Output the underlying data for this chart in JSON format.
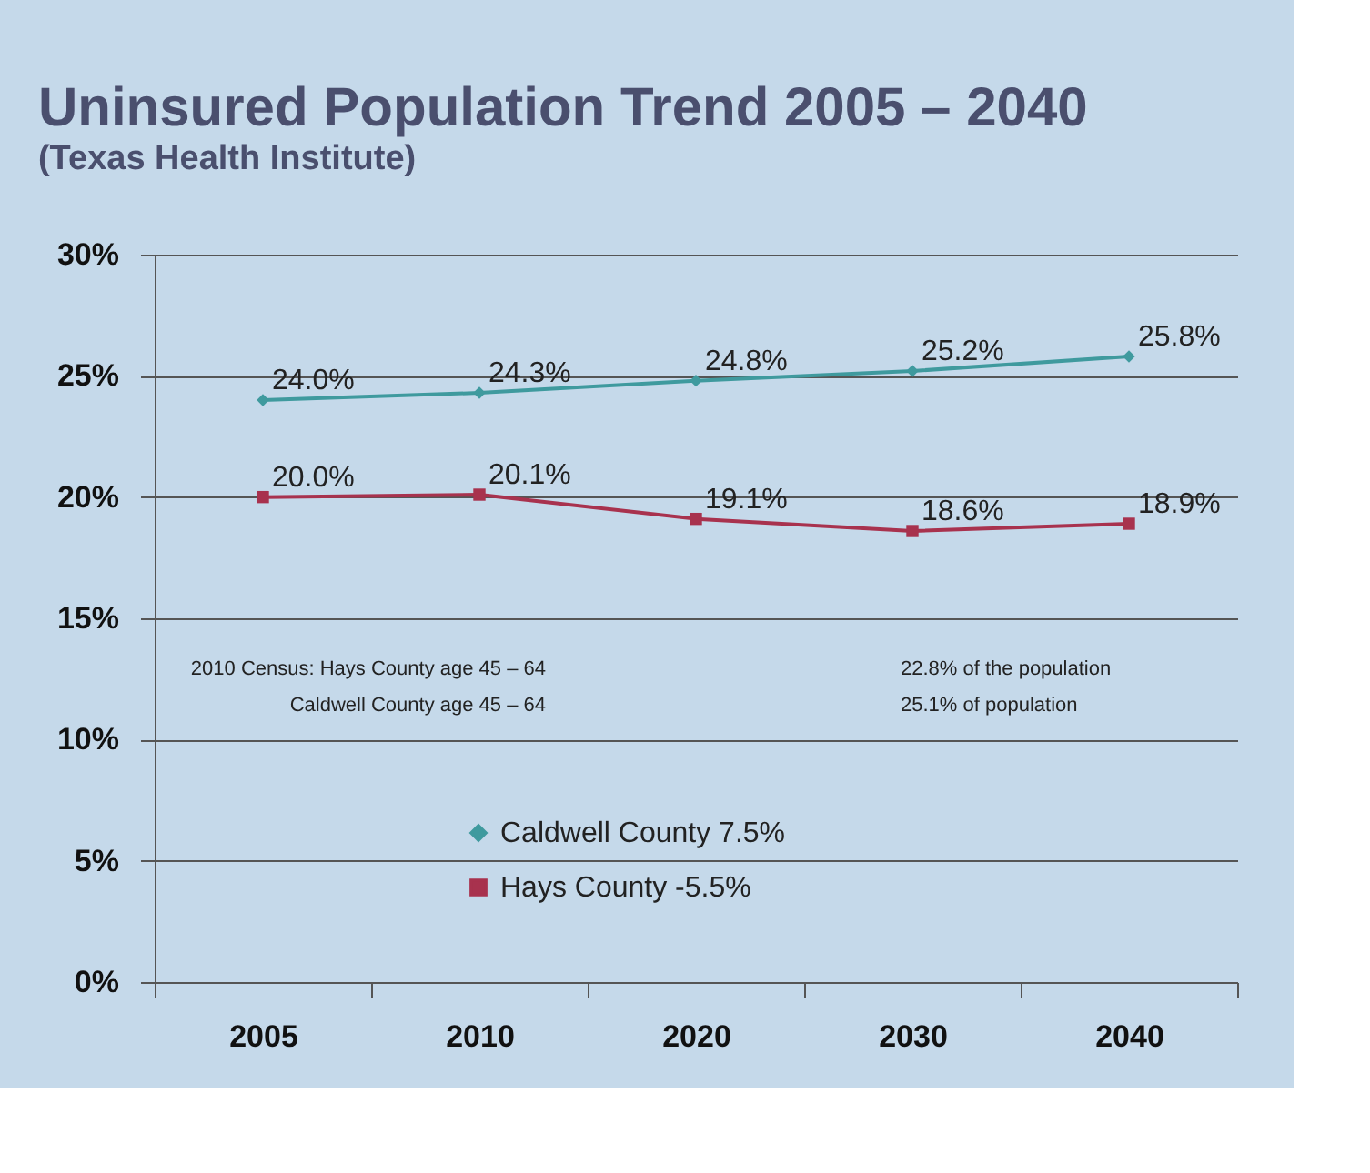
{
  "chart_data": {
    "type": "line",
    "title": "Uninsured Population Trend 2005 – 2040",
    "subtitle": "(Texas Health Institute)",
    "categories": [
      "2005",
      "2010",
      "2020",
      "2030",
      "2040"
    ],
    "series": [
      {
        "name": "Caldwell County  7.5%",
        "color": "#3f9a9e",
        "marker": "diamond",
        "values": [
          24.0,
          24.3,
          24.8,
          25.2,
          25.8
        ],
        "value_labels": [
          "24.0%",
          "24.3%",
          "24.8%",
          "25.2%",
          "25.8%"
        ]
      },
      {
        "name": "Hays County  -5.5%",
        "color": "#a8324e",
        "marker": "square",
        "values": [
          20.0,
          20.1,
          19.1,
          18.6,
          18.9
        ],
        "value_labels": [
          "20.0%",
          "20.1%",
          "19.1%",
          "18.6%",
          "18.9%"
        ]
      }
    ],
    "ylim": [
      0,
      30
    ],
    "yticks": [
      {
        "value": 0,
        "label": "0%"
      },
      {
        "value": 5,
        "label": "5%"
      },
      {
        "value": 10,
        "label": "10%"
      },
      {
        "value": 15,
        "label": "15%"
      },
      {
        "value": 20,
        "label": "20%"
      },
      {
        "value": 25,
        "label": "25%"
      },
      {
        "value": 30,
        "label": "30%"
      }
    ],
    "grid": "y",
    "legend": "bottom",
    "annotations": [
      "2010 Census:   Hays County age 45 – 64",
      "22.8% of the population",
      "Caldwell County  age 45 – 64",
      "25.1% of population"
    ]
  }
}
